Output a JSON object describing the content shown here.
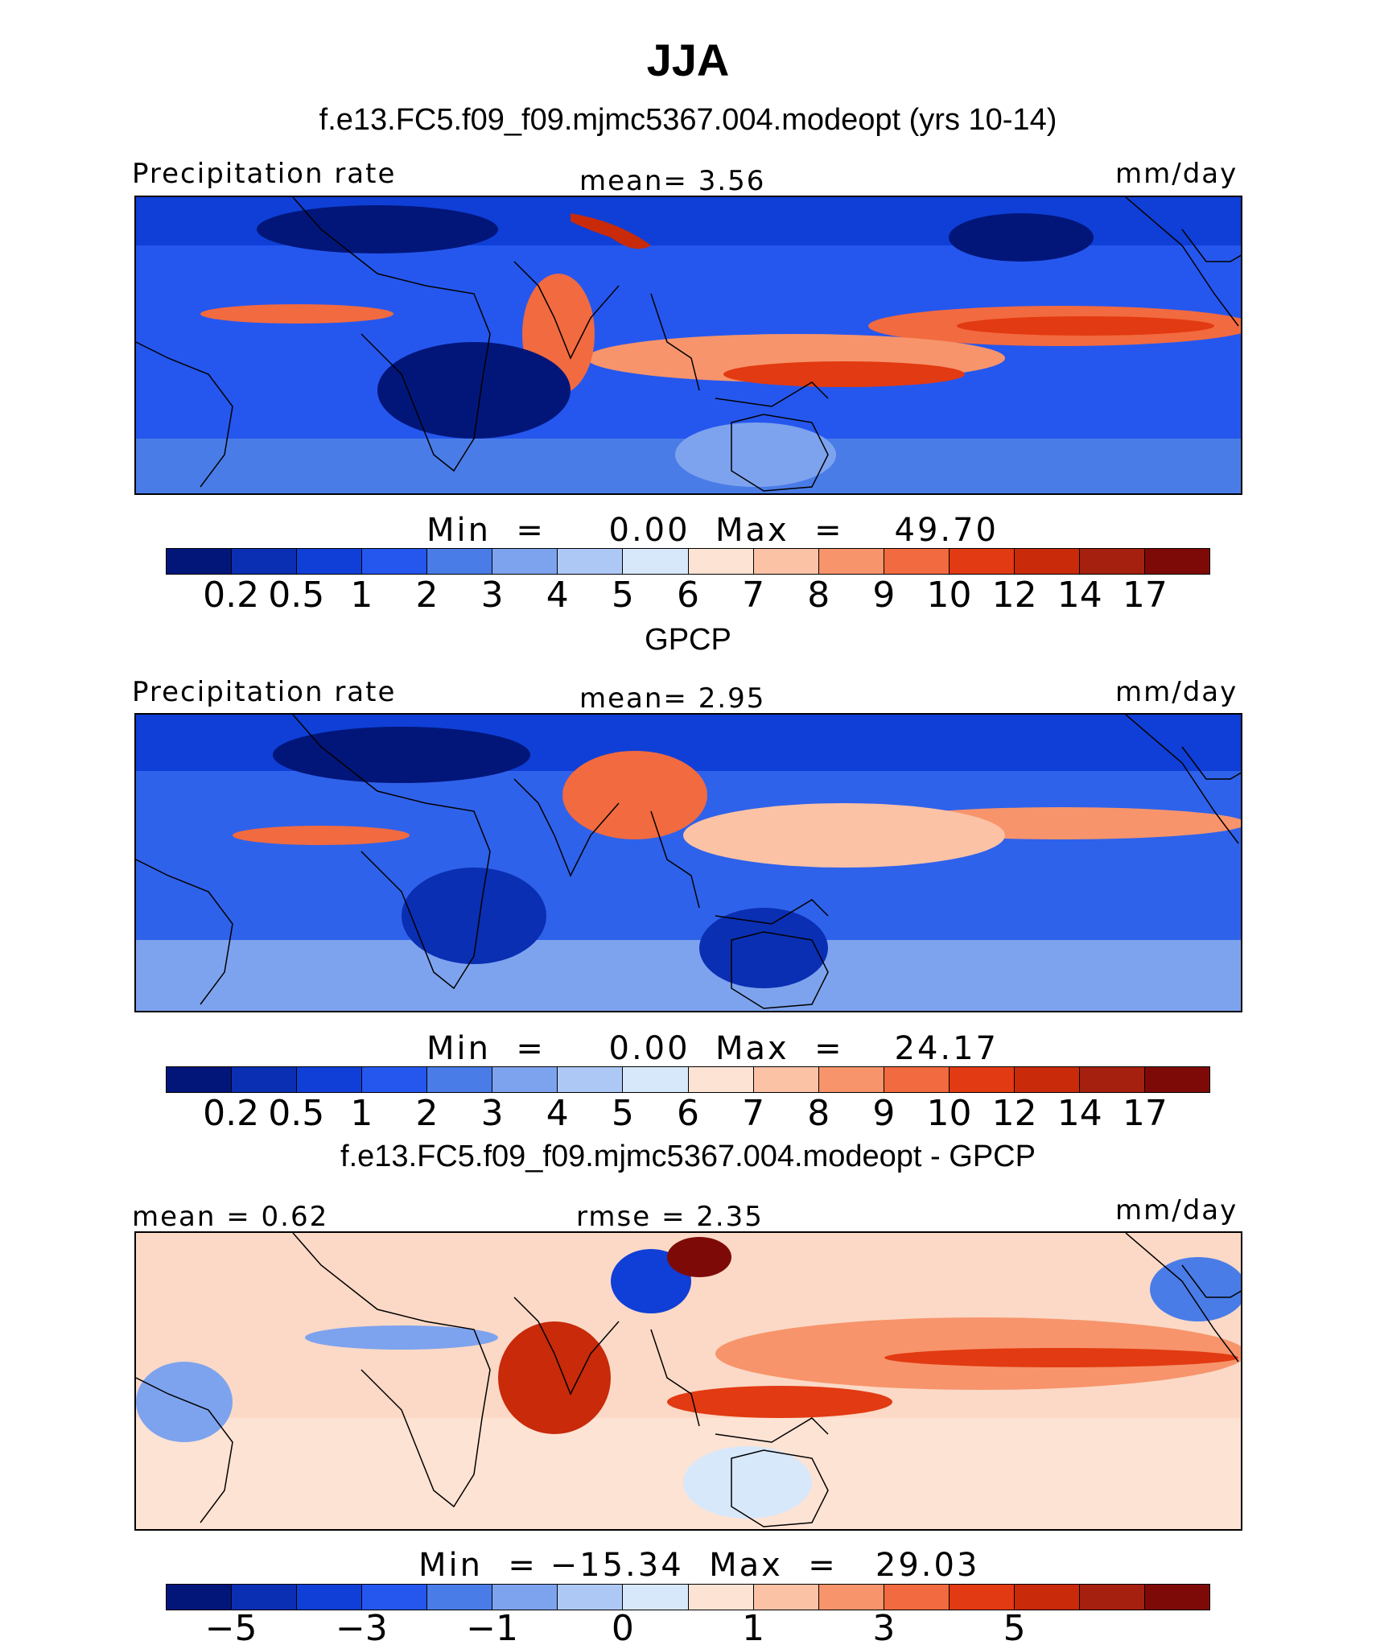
{
  "title": "JJA",
  "panels": [
    {
      "header": "f.e13.FC5.f09_f09.mjmc5367.004.modeopt (yrs 10-14)",
      "left_label": "Precipitation  rate",
      "center_label": "mean=    3.56",
      "units": "mm/day",
      "minmax": "Min  =     0.00  Max  =    49.70",
      "field": "model"
    },
    {
      "header": "GPCP",
      "left_label": "Precipitation  rate",
      "center_label": "mean=    2.95",
      "units": "mm/day",
      "minmax": "Min  =     0.00  Max  =    24.17",
      "field": "obs"
    },
    {
      "header": "f.e13.FC5.f09_f09.mjmc5367.004.modeopt - GPCP",
      "left_label": "mean  =    0.62",
      "center_label": "rmse  =    2.35",
      "units": "mm/day",
      "minmax": "Min  = −15.34  Max  =   29.03",
      "field": "diff"
    }
  ],
  "colorbar_colors": [
    "#02167a",
    "#0a2fb3",
    "#0f3fd6",
    "#2557ee",
    "#4a7ce8",
    "#7ea3ee",
    "#aec8f6",
    "#d8e8fb",
    "#fde3d4",
    "#fbc2a6",
    "#f7946b",
    "#f26a3f",
    "#e23a12",
    "#c82a0a",
    "#a5200e",
    "#7e0a07"
  ],
  "precip_ticks": [
    "0.2",
    "0.5",
    "1",
    "2",
    "3",
    "4",
    "5",
    "6",
    "7",
    "8",
    "9",
    "10",
    "12",
    "14",
    "17"
  ],
  "diff_ticks": [
    "−5",
    "−3",
    "−1",
    "0",
    "1",
    "3",
    "5"
  ],
  "ocean_colors": {
    "model": "#2557ee",
    "obs": "#2f62ea",
    "diff": "#fbd9c6"
  },
  "coastline_color": "#000000"
}
